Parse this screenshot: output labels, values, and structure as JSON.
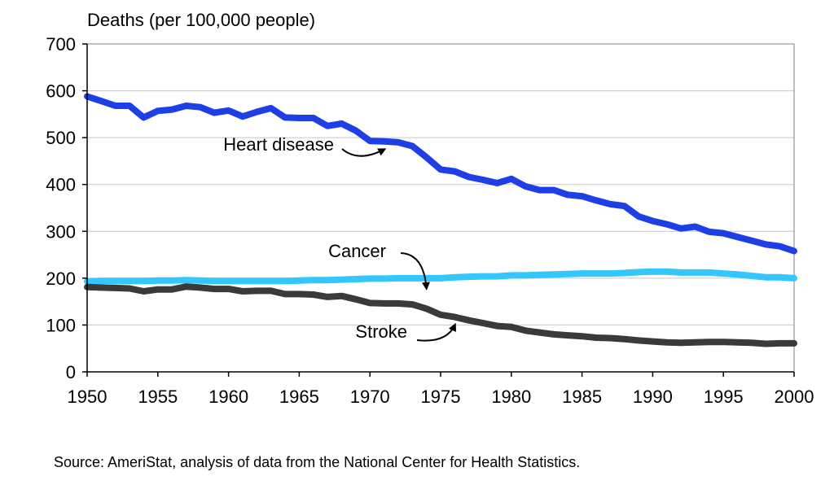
{
  "chart_data": {
    "type": "line",
    "ylabel": "Deaths (per 100,000 people)",
    "xlim": [
      1950,
      2000
    ],
    "ylim": [
      0,
      700
    ],
    "x_ticks": [
      1950,
      1955,
      1960,
      1965,
      1970,
      1975,
      1980,
      1985,
      1990,
      1995,
      2000
    ],
    "y_ticks": [
      0,
      100,
      200,
      300,
      400,
      500,
      600,
      700
    ],
    "grid": true,
    "x": [
      1950,
      1951,
      1952,
      1953,
      1954,
      1955,
      1956,
      1957,
      1958,
      1959,
      1960,
      1961,
      1962,
      1963,
      1964,
      1965,
      1966,
      1967,
      1968,
      1969,
      1970,
      1971,
      1972,
      1973,
      1974,
      1975,
      1976,
      1977,
      1978,
      1979,
      1980,
      1981,
      1982,
      1983,
      1984,
      1985,
      1986,
      1987,
      1988,
      1989,
      1990,
      1991,
      1992,
      1993,
      1994,
      1995,
      1996,
      1997,
      1998,
      1999,
      2000
    ],
    "series": [
      {
        "name": "Heart disease",
        "color": "#1f3fe6",
        "values": [
          588,
          578,
          568,
          568,
          543,
          557,
          560,
          568,
          565,
          553,
          558,
          545,
          555,
          563,
          543,
          542,
          542,
          525,
          530,
          515,
          493,
          492,
          490,
          482,
          458,
          432,
          428,
          416,
          410,
          403,
          412,
          396,
          388,
          388,
          378,
          375,
          366,
          358,
          354,
          332,
          322,
          315,
          306,
          310,
          299,
          296,
          288,
          280,
          272,
          268,
          258
        ]
      },
      {
        "name": "Cancer",
        "color": "#33c6ff",
        "values": [
          193,
          194,
          194,
          194,
          194,
          195,
          195,
          196,
          195,
          194,
          194,
          194,
          194,
          194,
          194,
          195,
          196,
          196,
          197,
          198,
          199,
          199,
          200,
          200,
          200,
          200,
          202,
          203,
          204,
          204,
          206,
          206,
          207,
          208,
          209,
          210,
          210,
          210,
          211,
          213,
          214,
          214,
          212,
          212,
          212,
          210,
          208,
          205,
          202,
          202,
          200
        ]
      },
      {
        "name": "Stroke",
        "color": "#3a3a3a",
        "values": [
          181,
          180,
          179,
          178,
          172,
          176,
          176,
          182,
          180,
          177,
          177,
          172,
          173,
          173,
          166,
          166,
          165,
          160,
          162,
          155,
          147,
          146,
          146,
          144,
          135,
          122,
          117,
          110,
          104,
          98,
          96,
          88,
          84,
          80,
          78,
          76,
          73,
          72,
          70,
          67,
          65,
          63,
          62,
          63,
          64,
          64,
          63,
          62,
          60,
          61,
          61
        ]
      }
    ],
    "annotations": [
      {
        "label": "Heart disease",
        "series": "Heart disease",
        "arrow_to_x": 1971
      },
      {
        "label": "Cancer",
        "series": "Cancer",
        "arrow_to_x": 1974
      },
      {
        "label": "Stroke",
        "series": "Stroke",
        "arrow_to_x": 1976
      }
    ]
  },
  "source": "Source: AmeriStat, analysis of data from the National Center for Health Statistics."
}
